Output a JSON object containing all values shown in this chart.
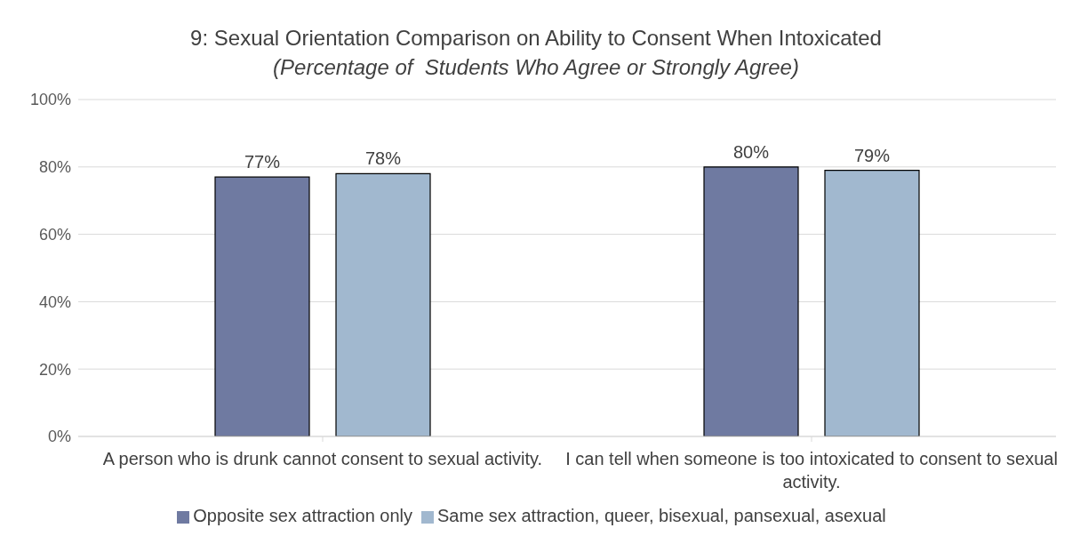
{
  "chart_data": {
    "type": "bar",
    "title": "9: Sexual Orientation Comparison on Ability to Consent When Intoxicated",
    "subtitle": "(Percentage of  Students Who Agree or Strongly Agree)",
    "categories": [
      "A person who is drunk cannot consent to sexual activity.",
      "I can tell when someone is too intoxicated to consent to sexual activity."
    ],
    "series": [
      {
        "name": "Opposite sex attraction only",
        "color": "#6f7aa1",
        "values": [
          77,
          80
        ],
        "value_labels": [
          "77%",
          "80%"
        ]
      },
      {
        "name": "Same sex attraction, queer, bisexual, pansexual, asexual",
        "color": "#a1b8cf",
        "values": [
          78,
          79
        ],
        "value_labels": [
          "78%",
          "79%"
        ]
      }
    ],
    "ylim": [
      0,
      100
    ],
    "yticks": [
      {
        "value": 0,
        "label": "0%"
      },
      {
        "value": 20,
        "label": "20%"
      },
      {
        "value": 40,
        "label": "40%"
      },
      {
        "value": 60,
        "label": "60%"
      },
      {
        "value": 80,
        "label": "80%"
      },
      {
        "value": 100,
        "label": "100%"
      }
    ],
    "grid": "y",
    "legend": "bottom"
  }
}
